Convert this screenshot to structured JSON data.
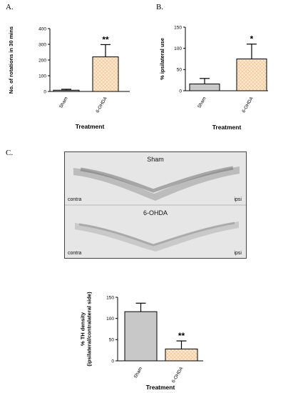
{
  "panels": {
    "a": "A.",
    "b": "B.",
    "c": "C."
  },
  "micrograph": {
    "top_title": "Sham",
    "bottom_title": "6-OHDA",
    "left_label": "contra",
    "right_label": "ipsi"
  },
  "colors": {
    "sham_fill": "#c8c8c8",
    "ohda_fill": "#fde8d0",
    "ohda_hatch": "#f3c493",
    "axis": "#000000"
  },
  "chart_data": [
    {
      "type": "bar",
      "categories": [
        "Sham",
        "6-OHDA"
      ],
      "values": [
        8,
        220
      ],
      "errors": [
        6,
        78
      ],
      "annotations": [
        "",
        "**"
      ],
      "ylabel": "No. of rotations in 30 mins",
      "xlabel": "Treatment",
      "ylim": [
        0,
        400
      ],
      "yticks": [
        0,
        100,
        200,
        300,
        400
      ]
    },
    {
      "type": "bar",
      "categories": [
        "Sham",
        "6-OHDA"
      ],
      "values": [
        16,
        75
      ],
      "errors": [
        13,
        35
      ],
      "annotations": [
        "",
        "*"
      ],
      "ylabel": "% ipsilateral use",
      "xlabel": "Treatment",
      "ylim": [
        0,
        150
      ],
      "yticks": [
        0,
        50,
        100,
        150
      ]
    },
    {
      "type": "bar",
      "categories": [
        "Sham",
        "6-OHDA"
      ],
      "values": [
        116,
        28
      ],
      "errors": [
        20,
        19
      ],
      "annotations": [
        "",
        "**"
      ],
      "ylabel": "% TH density\n(ipsilateral/contralateral side)",
      "xlabel": "Treatment",
      "ylim": [
        0,
        150
      ],
      "yticks": [
        0,
        50,
        100,
        150
      ]
    }
  ]
}
